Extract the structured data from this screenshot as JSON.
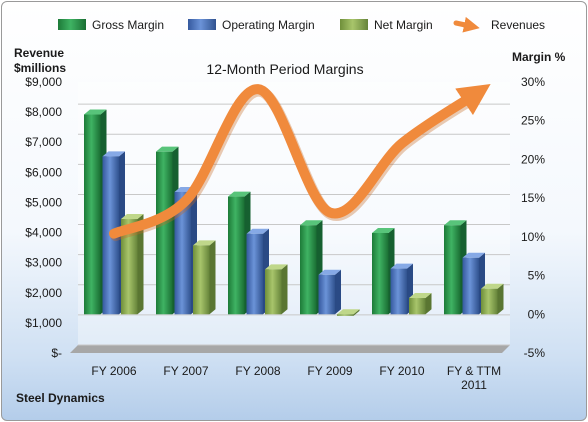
{
  "chart_data": {
    "type": "bar",
    "title": "12-Month Period Margins",
    "subtitle": "Steel Dynamics",
    "ylabel_left": "Revenue\n$millions",
    "ylabel_right": "Margin %",
    "categories": [
      "FY 2006",
      "FY 2007",
      "FY 2008",
      "FY 2009",
      "FY 2010",
      "FY & TTM\n2011"
    ],
    "ylim_left": [
      0,
      9000
    ],
    "ylim_right": [
      -5,
      30
    ],
    "left_ticks": [
      "$-",
      "$1,000",
      "$2,000",
      "$3,000",
      "$4,000",
      "$5,000",
      "$6,000",
      "$7,000",
      "$8,000",
      "$9,000"
    ],
    "right_ticks": [
      "-5%",
      "0%",
      "5%",
      "10%",
      "15%",
      "20%",
      "25%",
      "30%"
    ],
    "legend_position": "top",
    "series": [
      {
        "name": "Gross Margin",
        "axis": "right",
        "kind": "bar",
        "color": "#2e9a4e",
        "values": [
          25.8,
          21.0,
          15.2,
          11.5,
          10.5,
          11.5
        ]
      },
      {
        "name": "Operating Margin",
        "axis": "right",
        "kind": "bar",
        "color": "#4f79c4",
        "values": [
          20.4,
          15.8,
          10.4,
          5.1,
          5.9,
          7.3
        ]
      },
      {
        "name": "Net Margin",
        "axis": "right",
        "kind": "bar",
        "color": "#8fb054",
        "values": [
          12.3,
          8.9,
          5.8,
          -0.2,
          2.1,
          3.3
        ]
      },
      {
        "name": "Revenues",
        "axis": "left",
        "kind": "line",
        "color": "#f08a3c",
        "values": [
          3300,
          4400,
          8100,
          4000,
          6300,
          7900
        ]
      }
    ]
  }
}
